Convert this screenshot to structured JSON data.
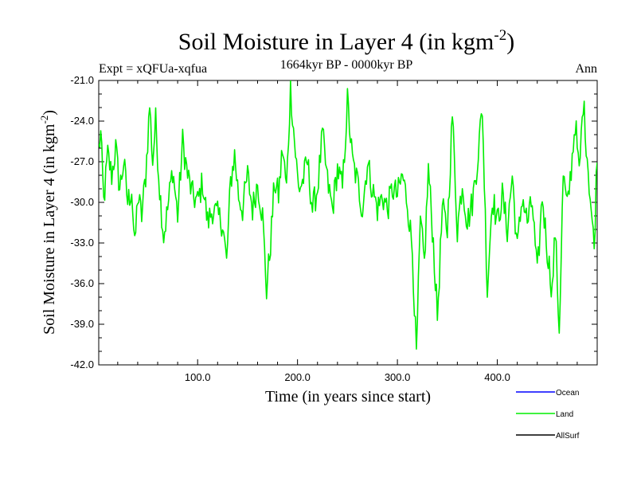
{
  "chart_data": {
    "type": "line",
    "title": "Soil Moisture in Layer 4 (in kgm",
    "title_sup": "-2",
    "title_close": ")",
    "expt_label": "Expt = xQFUa-xqfua",
    "period_label": "1664kyr BP - 0000kyr BP",
    "season_label": "Ann",
    "xlabel": "Time (in years since start)",
    "ylabel": "Soil Moisture in Layer 4 (in kgm",
    "ylabel_sup": "-2",
    "ylabel_close": ")",
    "xlim": [
      1,
      500
    ],
    "ylim": [
      -42.0,
      -21.0
    ],
    "xticks": [
      100,
      200,
      300,
      400
    ],
    "xtick_labels": [
      "100.0",
      "200.0",
      "300.0",
      "400.0"
    ],
    "yticks": [
      -21,
      -24,
      -27,
      -30,
      -33,
      -36,
      -39,
      -42
    ],
    "ytick_labels": [
      "-21.0",
      "-24.0",
      "-27.0",
      "-30.0",
      "-33.0",
      "-36.0",
      "-39.0",
      "-42.0"
    ],
    "legend": [
      {
        "name": "Ocean",
        "color": "#0000ff"
      },
      {
        "name": "Land",
        "color": "#00ee00"
      },
      {
        "name": "AllSurf",
        "color": "#000000"
      }
    ],
    "legend_position": "bottom-right",
    "series": [
      {
        "name": "Land",
        "color": "#00ee00",
        "anchors_x": [
          1,
          3,
          6,
          10,
          14,
          18,
          22,
          26,
          30,
          34,
          37,
          40,
          44,
          48,
          52,
          55,
          58,
          62,
          66,
          70,
          75,
          80,
          85,
          90,
          95,
          100,
          105,
          110,
          115,
          120,
          125,
          129,
          133,
          137,
          141,
          145,
          150,
          155,
          160,
          165,
          169,
          173,
          177,
          181,
          185,
          189,
          193,
          197,
          201,
          205,
          210,
          215,
          220,
          225,
          230,
          235,
          240,
          245,
          250,
          255,
          260,
          265,
          270,
          275,
          280,
          285,
          290,
          295,
          300,
          305,
          310,
          315,
          319,
          323,
          327,
          331,
          336,
          340,
          345,
          350,
          355,
          360,
          365,
          370,
          375,
          380,
          385,
          390,
          395,
          400,
          405,
          410,
          415,
          420,
          425,
          430,
          435,
          440,
          445,
          450,
          455,
          458,
          462,
          466,
          470,
          474,
          478,
          482,
          486,
          490,
          494,
          497,
          500
        ],
        "anchors_y": [
          -26.0,
          -25.0,
          -30.0,
          -26.5,
          -28.0,
          -26.0,
          -29.0,
          -27.0,
          -30.0,
          -29.0,
          -33.5,
          -29.5,
          -31.0,
          -28.0,
          -22.8,
          -27.0,
          -24.0,
          -29.0,
          -32.5,
          -30.5,
          -27.5,
          -31.0,
          -25.5,
          -28.0,
          -29.5,
          -30.0,
          -28.5,
          -31.5,
          -30.5,
          -31.0,
          -31.5,
          -34.5,
          -28.5,
          -26.5,
          -29.5,
          -30.5,
          -28.0,
          -30.5,
          -28.5,
          -31.0,
          -36.5,
          -33.0,
          -28.5,
          -29.5,
          -26.0,
          -29.0,
          -21.5,
          -25.5,
          -29.0,
          -28.5,
          -27.0,
          -30.5,
          -29.0,
          -25.0,
          -28.5,
          -30.5,
          -27.5,
          -29.0,
          -22.5,
          -27.0,
          -28.5,
          -30.5,
          -27.0,
          -29.0,
          -30.5,
          -29.5,
          -30.5,
          -29.0,
          -29.5,
          -28.0,
          -30.0,
          -33.5,
          -41.5,
          -31.5,
          -34.5,
          -27.5,
          -33.0,
          -38.5,
          -30.5,
          -32.0,
          -23.5,
          -32.0,
          -28.5,
          -31.5,
          -30.0,
          -27.0,
          -23.0,
          -36.5,
          -29.5,
          -31.5,
          -29.5,
          -32.0,
          -28.0,
          -33.5,
          -29.5,
          -31.5,
          -30.0,
          -35.5,
          -29.5,
          -33.5,
          -36.5,
          -32.0,
          -39.5,
          -28.0,
          -30.5,
          -27.5,
          -24.0,
          -28.0,
          -22.5,
          -26.5,
          -30.5,
          -33.5,
          -26.0
        ]
      },
      {
        "name": "Ocean",
        "color": "#0000ff",
        "values": []
      },
      {
        "name": "AllSurf",
        "color": "#000000",
        "values": []
      }
    ]
  }
}
